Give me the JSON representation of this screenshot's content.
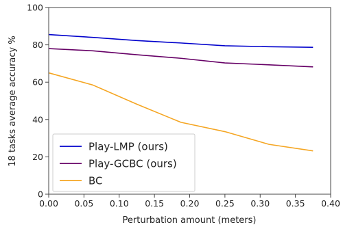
{
  "chart_data": {
    "type": "line",
    "title": "",
    "xlabel": "Perturbation amount (meters)",
    "ylabel": "18 tasks average accuracy %",
    "xlim": [
      0.0,
      0.4
    ],
    "ylim": [
      0,
      100
    ],
    "xticks": [
      "0.00",
      "0.05",
      "0.10",
      "0.15",
      "0.20",
      "0.25",
      "0.30",
      "0.35",
      "0.40"
    ],
    "yticks": [
      "0",
      "20",
      "40",
      "60",
      "80",
      "100"
    ],
    "grid": false,
    "legend_position": "bottom-left",
    "series": [
      {
        "name": "Play-LMP (ours)",
        "color": "#0000cc",
        "x": [
          0.0,
          0.0625,
          0.125,
          0.1875,
          0.25,
          0.3125,
          0.375
        ],
        "y": [
          85.5,
          84.0,
          82.3,
          81.0,
          79.5,
          79.0,
          78.7
        ]
      },
      {
        "name": "Play-GCBC (ours)",
        "color": "#660066",
        "x": [
          0.0,
          0.0625,
          0.125,
          0.1875,
          0.25,
          0.3125,
          0.375
        ],
        "y": [
          78.0,
          76.8,
          74.7,
          72.8,
          70.3,
          69.3,
          68.2
        ]
      },
      {
        "name": "BC",
        "color": "#f5a623",
        "x": [
          0.0,
          0.0625,
          0.125,
          0.1875,
          0.25,
          0.3125,
          0.375
        ],
        "y": [
          65.0,
          58.5,
          48.2,
          38.5,
          33.5,
          26.7,
          23.2
        ]
      }
    ]
  }
}
